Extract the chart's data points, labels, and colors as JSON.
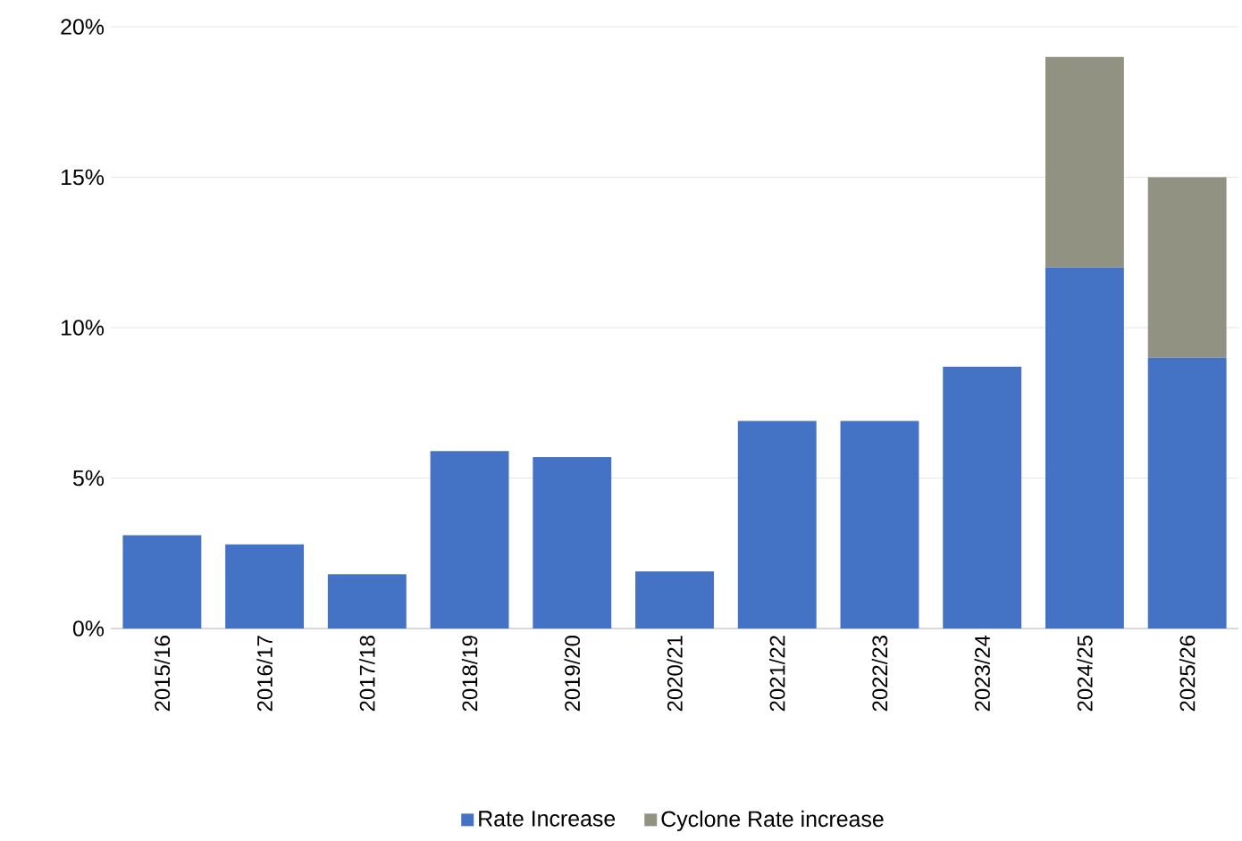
{
  "chart_data": {
    "type": "bar",
    "stacked": true,
    "categories": [
      "2015/16",
      "2016/17",
      "2017/18",
      "2018/19",
      "2019/20",
      "2020/21",
      "2021/22",
      "2022/23",
      "2023/24",
      "2024/25",
      "2025/26"
    ],
    "series": [
      {
        "name": "Rate Increase",
        "color": "#4472c4",
        "values": [
          3.1,
          2.8,
          1.8,
          5.9,
          5.7,
          1.9,
          6.9,
          6.9,
          8.7,
          12.0,
          9.0
        ]
      },
      {
        "name": "Cyclone Rate increase",
        "color": "#929283",
        "values": [
          null,
          null,
          null,
          null,
          null,
          null,
          null,
          null,
          null,
          7.0,
          6.0
        ]
      }
    ],
    "ylim": [
      0,
      20
    ],
    "yticks": [
      {
        "value": 0,
        "label": "0%"
      },
      {
        "value": 5,
        "label": "5%"
      },
      {
        "value": 10,
        "label": "10%"
      },
      {
        "value": 15,
        "label": "15%"
      },
      {
        "value": 20,
        "label": "20%"
      }
    ],
    "grid": "y",
    "legend": "bottom"
  }
}
